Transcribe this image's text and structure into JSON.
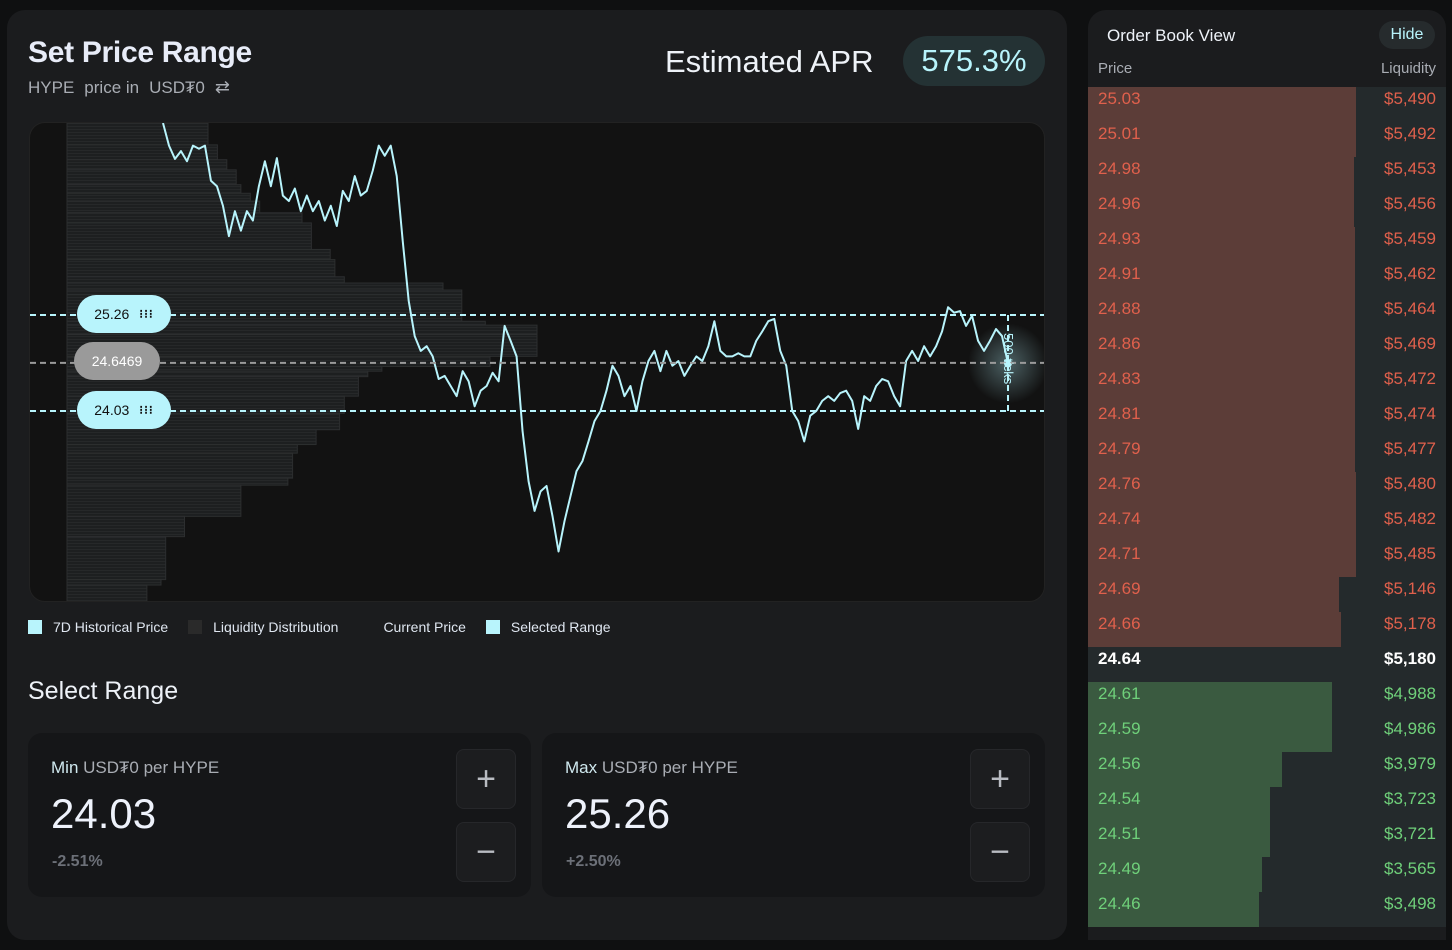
{
  "header": {
    "title": "Set Price Range",
    "base": "HYPE",
    "price_in": "price in",
    "quote": "USD₮0",
    "swap_icon": "swap-arrows-icon",
    "apr_label": "Estimated APR",
    "apr_value": "575.3%"
  },
  "colors": {
    "accent": "#b8f4fc",
    "ask_bar": "#5c3d38",
    "ask_text": "#e0604c",
    "bid_bar": "#3a5a40",
    "bid_text": "#6fd07a",
    "mid_bg": "#242a2c"
  },
  "chart": {
    "range_max": 25.26,
    "range_min": 24.03,
    "current": 24.6469,
    "max_label": "25.26",
    "min_label": "24.03",
    "current_label": "24.6469",
    "ticks_label": "500 ticks",
    "ylim": [
      21.57,
      27.72
    ],
    "price_series": [
      27.72,
      27.43,
      27.26,
      27.36,
      27.23,
      27.43,
      27.39,
      27.43,
      26.98,
      26.91,
      26.66,
      26.27,
      26.59,
      26.34,
      26.59,
      26.47,
      26.91,
      27.23,
      26.91,
      27.27,
      26.79,
      26.72,
      26.88,
      26.59,
      26.79,
      26.59,
      26.72,
      26.47,
      26.66,
      26.4,
      26.85,
      26.72,
      27.04,
      26.79,
      26.85,
      27.11,
      27.43,
      27.3,
      27.43,
      27.04,
      26.21,
      25.44,
      24.99,
      24.8,
      24.86,
      24.73,
      24.44,
      24.48,
      24.35,
      24.22,
      24.54,
      24.41,
      24.09,
      24.29,
      24.35,
      24.52,
      24.41,
      25.12,
      24.93,
      24.73,
      23.77,
      23.13,
      22.75,
      23.0,
      23.07,
      22.68,
      22.23,
      22.62,
      22.94,
      23.26,
      23.39,
      23.64,
      23.9,
      24.03,
      24.29,
      24.61,
      24.48,
      24.22,
      24.35,
      24.03,
      24.41,
      24.67,
      24.8,
      24.54,
      24.8,
      24.61,
      24.67,
      24.48,
      24.61,
      24.73,
      24.67,
      24.86,
      25.18,
      24.8,
      24.73,
      24.73,
      24.77,
      24.73,
      24.73,
      24.93,
      25.05,
      25.18,
      25.21,
      24.8,
      24.61,
      24.03,
      23.9,
      23.64,
      23.97,
      24.03,
      24.16,
      24.22,
      24.16,
      24.26,
      24.29,
      24.16,
      23.8,
      24.22,
      24.16,
      24.35,
      24.44,
      24.41,
      24.22,
      24.09,
      24.67,
      24.8,
      24.67,
      24.86,
      24.73,
      24.86,
      25.05,
      25.36,
      25.29,
      25.31,
      25.12,
      25.25,
      24.93,
      24.8,
      24.93,
      25.08,
      24.99,
      24.64
    ],
    "liquidity": [
      [
        27.72,
        27.44,
        30
      ],
      [
        27.44,
        27.25,
        32
      ],
      [
        27.25,
        27.12,
        34
      ],
      [
        27.12,
        26.93,
        36
      ],
      [
        26.93,
        26.82,
        37
      ],
      [
        26.82,
        26.72,
        39
      ],
      [
        26.72,
        26.57,
        41
      ],
      [
        26.57,
        26.44,
        50
      ],
      [
        26.44,
        26.1,
        52
      ],
      [
        26.1,
        25.97,
        56
      ],
      [
        25.97,
        25.75,
        57
      ],
      [
        25.75,
        25.67,
        59
      ],
      [
        25.67,
        25.58,
        80
      ],
      [
        25.58,
        25.52,
        84
      ],
      [
        25.52,
        25.18,
        84
      ],
      [
        25.18,
        25.13,
        89
      ],
      [
        25.13,
        25.01,
        100
      ],
      [
        25.01,
        24.73,
        100
      ],
      [
        24.73,
        24.6,
        90
      ],
      [
        24.6,
        24.54,
        67
      ],
      [
        24.54,
        24.47,
        64
      ],
      [
        24.47,
        24.22,
        62
      ],
      [
        24.22,
        24.0,
        59
      ],
      [
        24.0,
        23.79,
        58
      ],
      [
        23.79,
        23.6,
        53
      ],
      [
        23.6,
        23.49,
        49
      ],
      [
        23.49,
        23.17,
        48
      ],
      [
        23.17,
        23.08,
        47
      ],
      [
        23.08,
        22.68,
        37
      ],
      [
        22.68,
        22.42,
        25
      ],
      [
        22.42,
        21.87,
        21
      ],
      [
        21.87,
        21.8,
        20
      ],
      [
        21.8,
        21.57,
        17
      ]
    ]
  },
  "legend": [
    {
      "label": "7D Historical Price",
      "color": "#b8f4fc"
    },
    {
      "label": "Liquidity Distribution",
      "color": "#2a2a2a"
    },
    {
      "label": "Current Price",
      "color": ""
    },
    {
      "label": "Selected Range",
      "color": "#b8f4fc"
    }
  ],
  "select_range": {
    "title": "Select Range",
    "min": {
      "label": "Min",
      "unit": "USD₮0 per HYPE",
      "value": "24.03",
      "change": "-2.51%"
    },
    "max": {
      "label": "Max",
      "unit": "USD₮0 per HYPE",
      "value": "25.26",
      "change": "+2.50%"
    },
    "plus": "+",
    "minus": "−"
  },
  "order_book": {
    "title": "Order Book View",
    "hide_label": "Hide",
    "col_price": "Price",
    "col_liquidity": "Liquidity",
    "asks": [
      [
        "25.03",
        "$5,490",
        5490
      ],
      [
        "25.01",
        "$5,492",
        5492
      ],
      [
        "24.98",
        "$5,453",
        5453
      ],
      [
        "24.96",
        "$5,456",
        5456
      ],
      [
        "24.93",
        "$5,459",
        5459
      ],
      [
        "24.91",
        "$5,462",
        5462
      ],
      [
        "24.88",
        "$5,464",
        5464
      ],
      [
        "24.86",
        "$5,469",
        5469
      ],
      [
        "24.83",
        "$5,472",
        5472
      ],
      [
        "24.81",
        "$5,474",
        5474
      ],
      [
        "24.79",
        "$5,477",
        5477
      ],
      [
        "24.76",
        "$5,480",
        5480
      ],
      [
        "24.74",
        "$5,482",
        5482
      ],
      [
        "24.71",
        "$5,485",
        5485
      ],
      [
        "24.69",
        "$5,146",
        5146
      ],
      [
        "24.66",
        "$5,178",
        5178
      ]
    ],
    "mid": [
      "24.64",
      "$5,180"
    ],
    "bids": [
      [
        "24.61",
        "$4,988",
        4988
      ],
      [
        "24.59",
        "$4,986",
        4986
      ],
      [
        "24.56",
        "$3,979",
        3979
      ],
      [
        "24.54",
        "$3,723",
        3723
      ],
      [
        "24.51",
        "$3,721",
        3721
      ],
      [
        "24.49",
        "$3,565",
        3565
      ],
      [
        "24.46",
        "$3,498",
        3498
      ]
    ]
  }
}
